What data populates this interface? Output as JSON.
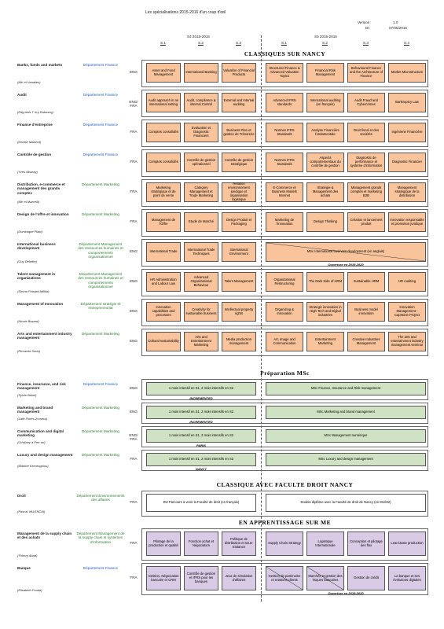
{
  "header": {
    "title": "Les spécialisations 2015-2016 d'un coup d'œil",
    "version_label": "Version:",
    "version": "1.0",
    "date_label": "Dt:",
    "date": "07/05/2015",
    "period1": "S4 2015-2016",
    "period2": "S5 2015-2016",
    "sems1": [
      "S.1",
      "S.2",
      "S.3"
    ],
    "sems2": [
      "S.1",
      "S.2",
      "S.3",
      "S.4"
    ]
  },
  "sections": [
    {
      "title": "CLASSIQUES SUR NANCY",
      "rows": [
        {
          "name": "Banks, funds and markets",
          "person": "(Mic el Vanalles)",
          "dept": "Département Finance",
          "lang": "ENG",
          "c1": [
            "Asset and Fund Management",
            "International Banking",
            "Valuation of Financial Products"
          ],
          "c2": [
            "Structured Finance & Advanced Valuation Topics",
            "Financial Risk Management",
            "Behavioural Finance and the Architecture of Finance",
            "Market Microstructure"
          ]
        },
        {
          "name": "Audit",
          "person": "(Edg ards T ery Duboscq)",
          "dept": "Département Finance",
          "lang": "ENG/ FRA",
          "c1": [
            "Audit approach in an international setting",
            "Audit, compliance & internal Control",
            "External and Internal auditing"
          ],
          "c2": [
            "Advanced IFRS standards",
            "International auditing (en français)",
            "Audit Fraud and Cybercrimes",
            "Bankruptcy Law"
          ]
        },
        {
          "name": "Finance d'entreprise",
          "person": "(Denise Malarcit)",
          "dept": "Département Finance",
          "lang": "FRA",
          "c1": [
            "Comptes consolidés",
            "Evaluation et Diagnostic Financiers",
            "Business Plan et gestion de Trésorerie"
          ],
          "c2": [
            "Normes IFRS Standards",
            "Analyse Financière fondamentale",
            "Droit fiscal et des sociétés",
            "Ingénierie Financière"
          ]
        },
        {
          "name": "Contrôle de gestion",
          "person": "(Yves Mauray)",
          "dept": "Département Finance",
          "lang": "FRA",
          "c1": [
            "Comptes consolidés",
            "Contrôle de gestion opérationnel",
            "Contrôle de gestion stratégique"
          ],
          "c2": [
            "Normes IFRS Standards",
            "Aspects comportementaux du contrôle de gestion",
            "Diagnostic de performance et système d'information",
            "Diagnostic Financier"
          ]
        },
        {
          "name": "Distribution, e-commerce et management des grands comptes",
          "person": "(Mic el Marcelli)",
          "dept": "Département Marketing",
          "lang": "FRA",
          "c1": [
            "Marketing stratégique et de point de vente",
            "Category Management et Trade Marketing",
            "Relation environnement juridique et organisation logistique"
          ],
          "c2": [
            "E-Commerce et Business Models Internet",
            "Stratégie & Management des achats",
            "Management grands comptes et marketing B2B",
            "Management stratégique de la distribution"
          ]
        },
        {
          "name": "Design de l'offre et innovation",
          "person": "(Dominique Plaid)",
          "dept": "Département Marketing",
          "lang": "FRA",
          "c1": [
            "Management de l'Offre",
            "Etude de Marché",
            "Design Produit et Packaging"
          ],
          "c2": [
            "Marketing de l'innovation",
            "Design Thinking",
            "Création et lancement produit",
            "Innovation responsable et promotion juridique"
          ]
        },
        {
          "name": "International business development",
          "person": "(Guy Deloffre)",
          "dept": "Département Management des ressources humaines et comportements organisationnel",
          "lang": "ENG",
          "c1": [
            "International Trade",
            "International Trade Techniques",
            "International Environment"
          ],
          "c2": "MSc International business development (en anglais)",
          "note": "Ouverture en 2019-2020"
        },
        {
          "name": "Talent management in organizations",
          "person": "(Sirona Pinsard-Milliot)",
          "dept": "Département Management des ressources humaines et comportements organisationnel",
          "lang": "ENG",
          "c1": [
            "HR Administration and Labour Law",
            "Advanced Organizational Behaviour",
            "Talent Management"
          ],
          "c2": [
            "Organizational Restructuring",
            "The Dark Side of HRM",
            "Sustainable HRM",
            "HR Auditing"
          ]
        },
        {
          "name": "Management of Innovation",
          "person": "(Nicole Bazard)",
          "dept": "Département stratégie et entrepreneuriat",
          "lang": "ENG",
          "c1": [
            "Innovation capabilities and processes",
            "Creativity for sustainable business",
            "Intellectual property rights"
          ],
          "c2": [
            "Organizing & Innovation",
            "Strategic innovation in High Tech and Digital industries",
            "Business model innovation",
            "Innovation Management - Capstone Project"
          ]
        },
        {
          "name": "Arts and entertainment industry management",
          "person": "(Riccardo Soria)",
          "dept": "Département Marketing",
          "lang": "ENG",
          "c1": [
            "Cultural sustainability",
            "Arts and Entertainment Marketing",
            "Media production management"
          ],
          "c2": [
            "Art, Image and Communication",
            "Entertainment Marketing",
            "Creative Industries Management",
            "The arts and entertainment industry management seminar"
          ]
        }
      ]
    },
    {
      "title": "Préparation MSc",
      "rows": [
        {
          "name": "Finance, insurance, and risk management",
          "person": "(Sylvie Bokel)",
          "dept": "Département Finance",
          "lang": "ENG",
          "c1": "1 mois intensif en S1, 2 mois intensifs en S2",
          "c2": "MSc Finance, Insurance and Risk management",
          "note": "INCREMENTED"
        },
        {
          "name": "Marketing and brand management",
          "person": "(Julie Florès Zomera)",
          "dept": "Département Marketing",
          "lang": "ENG",
          "c1": "1 mois intensif en S1, 2 mois intensifs en S2",
          "c2": "MSc Marketing and brand management",
          "note": "INCREMENTED"
        },
        {
          "name": "Communication and digital marketing",
          "person": "(Cristiany a Ferr ari)",
          "dept": "Département Marketing",
          "lang": "ENG/ FRA",
          "c1": "1 mois intensif en S1, 2 mois intensifs en S2",
          "c2": "MSc Management numérique",
          "note": "PARIS"
        },
        {
          "name": "Luxury and design management",
          "person": "(Martine Kervengolou)",
          "dept": "Département Marketing",
          "lang": "FRA",
          "c1": "1 mois intensif en S1, 2 mois intensifs en S2",
          "c2": "MSc Luxury and design management",
          "note": "NANCY"
        }
      ]
    },
    {
      "title": "CLASSIQUE AVEC FACULTE DROIT NANCY",
      "rows": [
        {
          "name": "Droit",
          "person": "(Pascal VALENCIA)",
          "dept": "Département Environnements des affaires",
          "lang": "FRA",
          "c1": "DU Parcours à venir la Faculté de droit (en français)",
          "c2": "Double diplôme avec la Faculté de droit de Nancy (en M1/M2)"
        }
      ]
    },
    {
      "title": "EN APPRENTISSAGE SUR ME",
      "rows": [
        {
          "name": "Management de la supply chain et des achats",
          "person": "(Thierry Abad)",
          "dept": "Département Management de la supply chain et systèmes d'information",
          "lang": "FRA",
          "c1": [
            "Pilotage de la production et qualité",
            "Fonction achat et Négociation",
            "Politique de distribution et sous-traitance"
          ],
          "c2": [
            "Supply Chain Strategy",
            "Logistique Internationale",
            "Conception et pilotage des flux",
            "Lean/Juste production"
          ]
        },
        {
          "name": "Banque",
          "person": "(Elisabeth Fouda)",
          "dept": "Département Finance",
          "lang": "FRA",
          "c1": [
            "Gestion, Négociation bancaire et CRM",
            "Contrôle de gestion et IFRS pour les banques",
            "Jeux de simulation d'affaires"
          ],
          "c2": [
            "Gestion de patrimoine et relations clients",
            "Marchés et gestion des risques bancaires",
            "Gestion de crédit",
            "La banque et ses évolutions digitales"
          ],
          "note": "Ouverture en 2019-2020"
        }
      ]
    }
  ]
}
